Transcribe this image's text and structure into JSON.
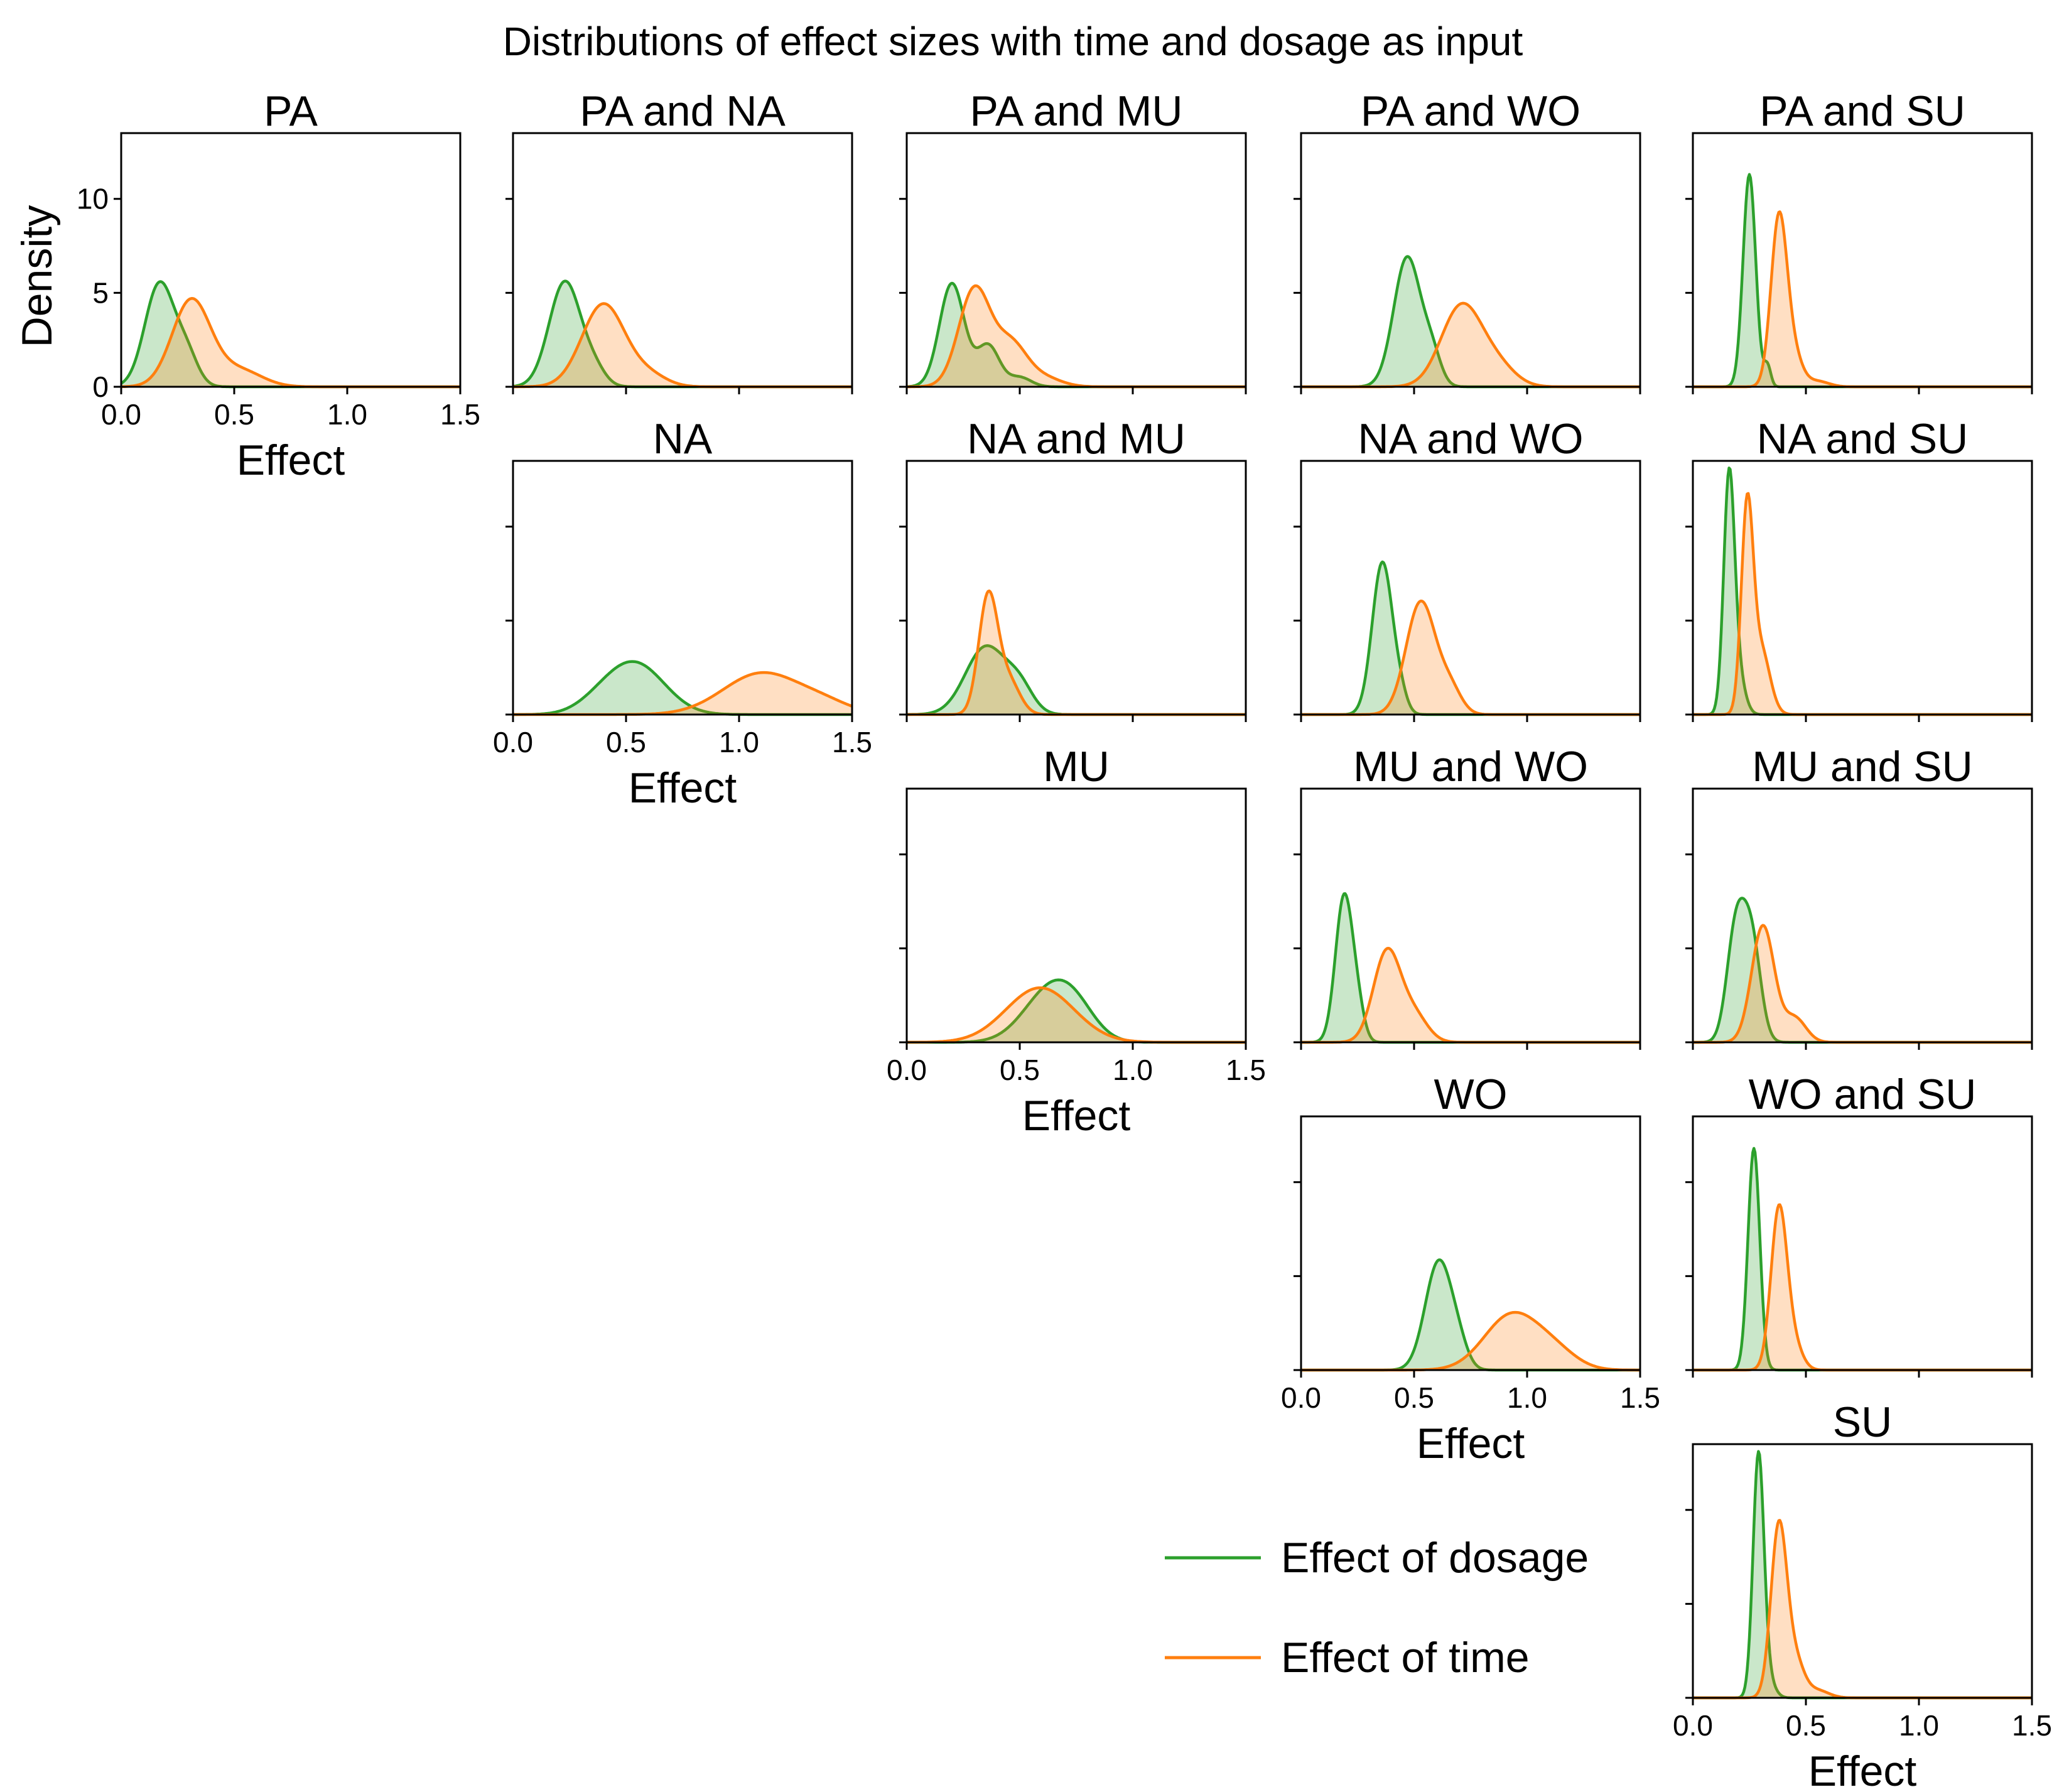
{
  "title": "Distributions of effect sizes with time and dosage as input",
  "xlabel": "Effect",
  "ylabel": "Density",
  "legend": [
    {
      "label": "Effect of dosage",
      "color": "#2ca02c"
    },
    {
      "label": "Effect of time",
      "color": "#ff7f0e"
    }
  ],
  "chart_data": {
    "type": "area",
    "xlabel": "Effect",
    "ylabel": "Density",
    "xlim": [
      0,
      1.5
    ],
    "ylim": [
      0,
      13.5
    ],
    "x_ticks": [
      "0.0",
      "0.5",
      "1.0",
      "1.5"
    ],
    "y_ticks": [
      "0",
      "5",
      "10"
    ],
    "grid": false,
    "legend_position": "lower-center",
    "series_colors": {
      "Effect of dosage": "#2ca02c",
      "Effect of time": "#ff7f0e"
    },
    "panels": [
      {
        "title": "PA",
        "row": 0,
        "col": 0,
        "show_x_ticklabels": true,
        "show_y_ticklabels": true,
        "series": [
          {
            "name": "Effect of dosage",
            "peaks": [
              [
                0.17,
                5.5,
                0.065
              ],
              [
                0.29,
                1.6,
                0.05
              ]
            ]
          },
          {
            "name": "Effect of time",
            "peaks": [
              [
                0.31,
                4.6,
                0.085
              ],
              [
                0.52,
                0.9,
                0.1
              ]
            ]
          }
        ]
      },
      {
        "title": "PA and NA",
        "row": 0,
        "col": 1,
        "show_x_ticklabels": false,
        "show_y_ticklabels": false,
        "series": [
          {
            "name": "Effect of dosage",
            "peaks": [
              [
                0.23,
                5.6,
                0.07
              ],
              [
                0.36,
                0.8,
                0.05
              ]
            ]
          },
          {
            "name": "Effect of time",
            "peaks": [
              [
                0.4,
                4.4,
                0.095
              ],
              [
                0.6,
                0.6,
                0.08
              ]
            ]
          }
        ]
      },
      {
        "title": "PA and MU",
        "row": 0,
        "col": 2,
        "show_x_ticklabels": false,
        "show_y_ticklabels": false,
        "series": [
          {
            "name": "Effect of dosage",
            "peaks": [
              [
                0.2,
                5.5,
                0.055
              ],
              [
                0.36,
                2.2,
                0.05
              ],
              [
                0.5,
                0.5,
                0.05
              ]
            ]
          },
          {
            "name": "Effect of time",
            "peaks": [
              [
                0.3,
                5.2,
                0.07
              ],
              [
                0.46,
                2.2,
                0.07
              ],
              [
                0.6,
                0.5,
                0.08
              ]
            ]
          }
        ]
      },
      {
        "title": "PA and WO",
        "row": 0,
        "col": 3,
        "show_x_ticklabels": false,
        "show_y_ticklabels": false,
        "series": [
          {
            "name": "Effect of dosage",
            "peaks": [
              [
                0.47,
                6.9,
                0.06
              ],
              [
                0.58,
                1.5,
                0.04
              ]
            ]
          },
          {
            "name": "Effect of time",
            "peaks": [
              [
                0.71,
                4.3,
                0.09
              ],
              [
                0.87,
                1.0,
                0.08
              ]
            ]
          }
        ]
      },
      {
        "title": "PA and SU",
        "row": 0,
        "col": 4,
        "show_x_ticklabels": false,
        "show_y_ticklabels": false,
        "series": [
          {
            "name": "Effect of dosage",
            "peaks": [
              [
                0.25,
                11.3,
                0.028
              ],
              [
                0.33,
                1.1,
                0.015
              ]
            ]
          },
          {
            "name": "Effect of time",
            "peaks": [
              [
                0.38,
                8.7,
                0.035
              ],
              [
                0.44,
                1.8,
                0.04
              ],
              [
                0.55,
                0.3,
                0.05
              ]
            ]
          }
        ]
      },
      {
        "title": "NA",
        "row": 1,
        "col": 1,
        "show_x_ticklabels": true,
        "show_y_ticklabels": false,
        "series": [
          {
            "name": "Effect of dosage",
            "peaks": [
              [
                0.54,
                2.7,
                0.13
              ],
              [
                0.38,
                0.4,
                0.1
              ]
            ]
          },
          {
            "name": "Effect of time",
            "peaks": [
              [
                1.1,
                2.2,
                0.17
              ],
              [
                1.38,
                0.5,
                0.12
              ]
            ]
          }
        ]
      },
      {
        "title": "NA and MU",
        "row": 1,
        "col": 2,
        "show_x_ticklabels": false,
        "show_y_ticklabels": false,
        "series": [
          {
            "name": "Effect of dosage",
            "peaks": [
              [
                0.35,
                3.6,
                0.09
              ],
              [
                0.5,
                1.3,
                0.06
              ]
            ]
          },
          {
            "name": "Effect of time",
            "peaks": [
              [
                0.36,
                6.2,
                0.042
              ],
              [
                0.45,
                1.8,
                0.05
              ]
            ]
          }
        ]
      },
      {
        "title": "NA and WO",
        "row": 1,
        "col": 3,
        "show_x_ticklabels": false,
        "show_y_ticklabels": false,
        "series": [
          {
            "name": "Effect of dosage",
            "peaks": [
              [
                0.36,
                8.1,
                0.045
              ],
              [
                0.44,
                0.8,
                0.03
              ]
            ]
          },
          {
            "name": "Effect of time",
            "peaks": [
              [
                0.53,
                6.0,
                0.065
              ],
              [
                0.66,
                1.3,
                0.05
              ]
            ]
          }
        ]
      },
      {
        "title": "NA and SU",
        "row": 1,
        "col": 4,
        "show_x_ticklabels": false,
        "show_y_ticklabels": false,
        "series": [
          {
            "name": "Effect of dosage",
            "peaks": [
              [
                0.16,
                12.3,
                0.024
              ],
              [
                0.2,
                2.0,
                0.03
              ]
            ]
          },
          {
            "name": "Effect of time",
            "peaks": [
              [
                0.24,
                10.6,
                0.026
              ],
              [
                0.3,
                3.5,
                0.04
              ]
            ]
          }
        ]
      },
      {
        "title": "MU",
        "row": 2,
        "col": 2,
        "show_x_ticklabels": true,
        "show_y_ticklabels": false,
        "series": [
          {
            "name": "Effect of dosage",
            "peaks": [
              [
                0.64,
                2.8,
                0.12
              ],
              [
                0.75,
                0.9,
                0.09
              ]
            ]
          },
          {
            "name": "Effect of time",
            "peaks": [
              [
                0.59,
                2.9,
                0.15
              ]
            ]
          }
        ]
      },
      {
        "title": "MU and WO",
        "row": 2,
        "col": 3,
        "show_x_ticklabels": false,
        "show_y_ticklabels": false,
        "series": [
          {
            "name": "Effect of dosage",
            "peaks": [
              [
                0.19,
                7.7,
                0.038
              ],
              [
                0.25,
                1.5,
                0.03
              ]
            ]
          },
          {
            "name": "Effect of time",
            "peaks": [
              [
                0.38,
                4.8,
                0.06
              ],
              [
                0.5,
                1.4,
                0.06
              ]
            ]
          }
        ]
      },
      {
        "title": "MU and SU",
        "row": 2,
        "col": 4,
        "show_x_ticklabels": false,
        "show_y_ticklabels": false,
        "series": [
          {
            "name": "Effect of dosage",
            "peaks": [
              [
                0.19,
                5.9,
                0.04
              ],
              [
                0.26,
                5.3,
                0.04
              ]
            ]
          },
          {
            "name": "Effect of time",
            "peaks": [
              [
                0.31,
                6.2,
                0.05
              ],
              [
                0.45,
                1.3,
                0.05
              ]
            ]
          }
        ]
      },
      {
        "title": "WO",
        "row": 3,
        "col": 3,
        "show_x_ticklabels": true,
        "show_y_ticklabels": false,
        "series": [
          {
            "name": "Effect of dosage",
            "peaks": [
              [
                0.61,
                5.8,
                0.06
              ],
              [
                0.7,
                0.8,
                0.04
              ]
            ]
          },
          {
            "name": "Effect of time",
            "peaks": [
              [
                0.93,
                2.9,
                0.12
              ],
              [
                1.12,
                0.9,
                0.1
              ]
            ]
          }
        ]
      },
      {
        "title": "WO and SU",
        "row": 3,
        "col": 4,
        "show_x_ticklabels": false,
        "show_y_ticklabels": false,
        "series": [
          {
            "name": "Effect of dosage",
            "peaks": [
              [
                0.27,
                11.8,
                0.026
              ]
            ]
          },
          {
            "name": "Effect of time",
            "peaks": [
              [
                0.38,
                8.3,
                0.035
              ],
              [
                0.44,
                1.5,
                0.04
              ]
            ]
          }
        ]
      },
      {
        "title": "SU",
        "row": 4,
        "col": 4,
        "show_x_ticklabels": true,
        "show_y_ticklabels": false,
        "series": [
          {
            "name": "Effect of dosage",
            "peaks": [
              [
                0.29,
                12.7,
                0.024
              ],
              [
                0.33,
                1.0,
                0.03
              ]
            ]
          },
          {
            "name": "Effect of time",
            "peaks": [
              [
                0.38,
                9.0,
                0.035
              ],
              [
                0.45,
                2.0,
                0.04
              ],
              [
                0.55,
                0.4,
                0.05
              ]
            ]
          }
        ]
      }
    ]
  }
}
